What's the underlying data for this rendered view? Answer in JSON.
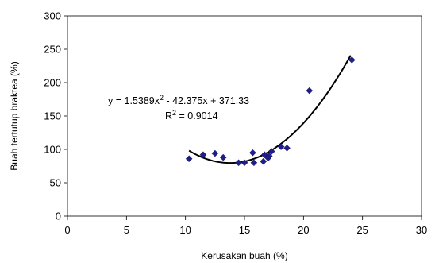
{
  "chart_data": {
    "type": "scatter",
    "xlabel": "Kerusakan buah (%)",
    "ylabel": "Buah tertutup braktea (%)",
    "xlim": [
      0,
      30
    ],
    "ylim": [
      0,
      300
    ],
    "xticks": [
      "0",
      "5",
      "10",
      "15",
      "20",
      "25",
      "30"
    ],
    "yticks": [
      "0",
      "50",
      "100",
      "150",
      "200",
      "250",
      "300"
    ],
    "grid": false,
    "marker_color": "#1f1f8c",
    "line_color": "#000000",
    "points": [
      {
        "x": 10.3,
        "y": 86
      },
      {
        "x": 11.5,
        "y": 92
      },
      {
        "x": 12.5,
        "y": 94
      },
      {
        "x": 13.2,
        "y": 88
      },
      {
        "x": 14.5,
        "y": 80
      },
      {
        "x": 15.0,
        "y": 80
      },
      {
        "x": 15.7,
        "y": 95
      },
      {
        "x": 15.8,
        "y": 80
      },
      {
        "x": 16.6,
        "y": 82
      },
      {
        "x": 16.7,
        "y": 92
      },
      {
        "x": 17.0,
        "y": 87
      },
      {
        "x": 17.1,
        "y": 90
      },
      {
        "x": 17.3,
        "y": 97
      },
      {
        "x": 18.1,
        "y": 104
      },
      {
        "x": 18.6,
        "y": 102
      },
      {
        "x": 20.5,
        "y": 188
      },
      {
        "x": 24.1,
        "y": 234
      }
    ],
    "trendline": {
      "type": "polynomial",
      "coefficients": [
        1.5389,
        -42.375,
        371.33
      ],
      "x_range": [
        10.3,
        24.0
      ],
      "equation_prefix": "y = 1.5389x",
      "equation_sup": "2",
      "equation_suffix": " - 42.375x + 371.33",
      "r2_prefix": "R",
      "r2_sup": "2",
      "r2_suffix": " = 0.9014"
    }
  }
}
